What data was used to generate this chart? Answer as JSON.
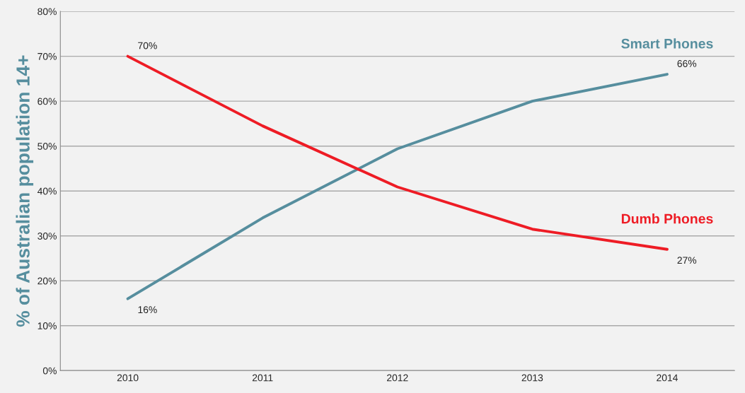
{
  "chart_data": {
    "type": "line",
    "ylabel": "% of Australian population 14+",
    "categories": [
      "2010",
      "2011",
      "2012",
      "2013",
      "2014"
    ],
    "series": [
      {
        "name": "Smart Phones",
        "color": "#568e9e",
        "values": [
          16,
          34,
          49.4,
          60,
          66
        ],
        "value_labels": [
          "16%",
          null,
          null,
          null,
          "66%"
        ]
      },
      {
        "name": "Dumb Phones",
        "color": "#ee1c25",
        "values": [
          70,
          54.5,
          40.9,
          31.5,
          27
        ],
        "value_labels": [
          "70%",
          null,
          null,
          null,
          "27%"
        ]
      }
    ],
    "ylim": [
      0,
      80
    ],
    "yticks": [
      {
        "value": 0,
        "label": "0%"
      },
      {
        "value": 10,
        "label": "10%"
      },
      {
        "value": 20,
        "label": "20%"
      },
      {
        "value": 30,
        "label": "30%"
      },
      {
        "value": 40,
        "label": "40%"
      },
      {
        "value": 50,
        "label": "50%"
      },
      {
        "value": 60,
        "label": "60%"
      },
      {
        "value": 70,
        "label": "70%"
      },
      {
        "value": 80,
        "label": "80%"
      }
    ],
    "grid": "y",
    "legend": false,
    "marker": "none",
    "line_style": "solid"
  }
}
